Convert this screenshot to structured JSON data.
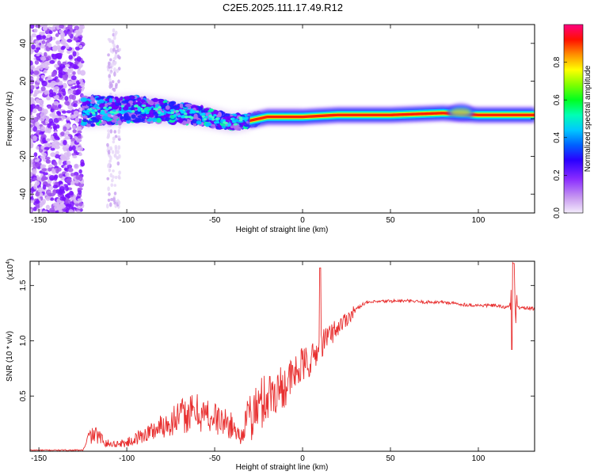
{
  "title": "C2E5.2025.111.17.49.R12",
  "chart_data": [
    {
      "type": "heatmap",
      "xlabel": "Height of straight line (km)",
      "ylabel": "Frequency (Hz)",
      "xlim": [
        -155,
        132
      ],
      "ylim": [
        -50,
        50
      ],
      "xticks": [
        "-150",
        "-100",
        "-50",
        "0",
        "50",
        "100"
      ],
      "yticks": [
        "-40",
        "-20",
        "0",
        "20",
        "40"
      ],
      "colorbar": {
        "label": "Normalized spectral amplitude",
        "range": [
          0,
          1
        ],
        "ticks": [
          "0.0",
          "0.2",
          "0.4",
          "0.6",
          "0.8"
        ],
        "colors": [
          "#e8d8f8",
          "#c080f0",
          "#6a00ff",
          "#0000ff",
          "#00b0ff",
          "#00ffb0",
          "#00ff00",
          "#a0ff00",
          "#ffff00",
          "#ff8000",
          "#ff0000",
          "#ff0080"
        ]
      },
      "ridge": {
        "x": [
          -125,
          -110,
          -100,
          -90,
          -80,
          -70,
          -60,
          -50,
          -40,
          -30,
          -20,
          -10,
          0,
          20,
          50,
          80,
          100,
          120,
          132
        ],
        "y": [
          4,
          4,
          5,
          5,
          4,
          3,
          2,
          0,
          -2,
          -1,
          1,
          1,
          1,
          2,
          2,
          3,
          2,
          2,
          2
        ]
      }
    },
    {
      "type": "line",
      "xlabel": "Height of straight line (km)",
      "ylabel": "SNR (10 * v/v)",
      "yscale_note": "(x10",
      "yscale_exp": "4",
      "xlim": [
        -155,
        132
      ],
      "ylim": [
        0,
        1.72
      ],
      "xticks": [
        "-150",
        "-100",
        "-50",
        "0",
        "50",
        "100"
      ],
      "yticks": [
        "0.5",
        "1.0",
        "1.5"
      ],
      "color": "#e83030",
      "series": [
        {
          "x": [
            -155,
            -140,
            -125,
            -122,
            -118,
            -110,
            -100,
            -90,
            -80,
            -70,
            -60,
            -50,
            -40,
            -35,
            -30,
            -25,
            -20,
            -15,
            -10,
            -5,
            0,
            5,
            10,
            15,
            20,
            25,
            30,
            35,
            40,
            50,
            60,
            70,
            80,
            90,
            100,
            110,
            115,
            118,
            120,
            122,
            125,
            132
          ],
          "y": [
            0.01,
            0.01,
            0.01,
            0.1,
            0.12,
            0.05,
            0.06,
            0.12,
            0.18,
            0.25,
            0.28,
            0.24,
            0.18,
            0.1,
            0.3,
            0.4,
            0.5,
            0.55,
            0.6,
            0.68,
            0.78,
            0.82,
            0.95,
            1.05,
            1.12,
            1.2,
            1.28,
            1.34,
            1.35,
            1.36,
            1.36,
            1.35,
            1.35,
            1.33,
            1.32,
            1.32,
            1.3,
            1.33,
            1.45,
            1.3,
            1.3,
            1.29
          ]
        }
      ]
    }
  ]
}
